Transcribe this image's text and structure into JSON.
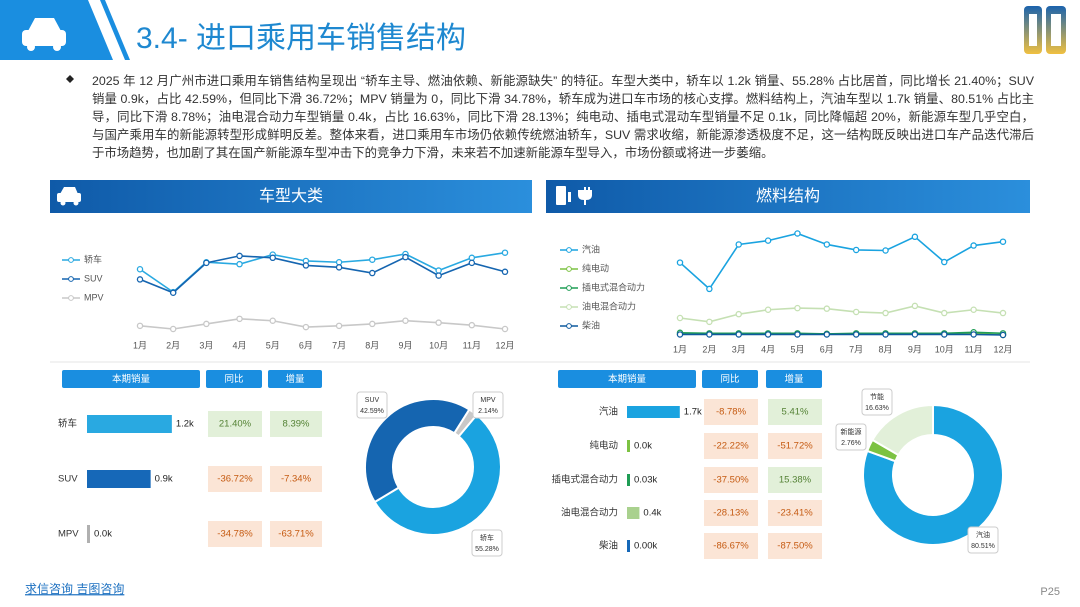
{
  "header": {
    "title": "3.4- 进口乘用车销售结构"
  },
  "summary": "2025 年 12 月广州市进口乘用车销售结构呈现出 “轿车主导、燃油依赖、新能源缺失” 的特征。车型大类中，轿车以 1.2k 销量、55.28% 占比居首，同比增长 21.40%；SUV 销量 0.9k，占比 42.59%，但同比下滑 36.72%；MPV 销量为 0，同比下滑 34.78%，轿车成为进口车市场的核心支撑。燃料结构上，汽油车型以 1.7k 销量、80.51% 占比主导，同比下滑 8.78%；油电混合动力车型销量 0.4k，占比 16.63%，同比下滑 28.13%；纯电动、插电式混动车型销量不足 0.1k，同比降幅超 20%，新能源车型几乎空白，与国产乘用车的新能源转型形成鲜明反差。整体来看，进口乘用车市场仍依赖传统燃油轿车，SUV 需求收缩，新能源渗透极度不足，这一结构既反映出进口车产品迭代滞后于市场趋势，也加剧了其在国产新能源车型冲击下的竞争力下滑，未来若不加速新能源车型导入，市场份额或将进一步萎缩。",
  "footer": {
    "source": "求信咨询 吉图咨询",
    "page": "P25"
  },
  "chart_data": [
    {
      "type": "line",
      "title": "车型大类",
      "categories": [
        "1月",
        "2月",
        "3月",
        "4月",
        "5月",
        "6月",
        "7月",
        "8月",
        "9月",
        "10月",
        "11月",
        "12月"
      ],
      "ylim": [
        0,
        1.4
      ],
      "series": [
        {
          "name": "轿车",
          "color": "#29a9e1",
          "values": [
            0.94,
            0.58,
            1.05,
            1.02,
            1.17,
            1.07,
            1.05,
            1.09,
            1.18,
            0.92,
            1.12,
            1.2
          ]
        },
        {
          "name": "SUV",
          "color": "#1565b0",
          "values": [
            0.78,
            0.57,
            1.04,
            1.15,
            1.12,
            1.0,
            0.97,
            0.88,
            1.13,
            0.84,
            1.04,
            0.9
          ]
        },
        {
          "name": "MPV",
          "color": "#c8c8c8",
          "values": [
            0.05,
            0,
            0.08,
            0.16,
            0.13,
            0.03,
            0.05,
            0.08,
            0.13,
            0.1,
            0.06,
            0
          ]
        }
      ]
    },
    {
      "type": "line",
      "title": "燃料结构",
      "categories": [
        "1月",
        "2月",
        "3月",
        "4月",
        "5月",
        "6月",
        "7月",
        "8月",
        "9月",
        "10月",
        "11月",
        "12月"
      ],
      "ylim": [
        0,
        1.95
      ],
      "series": [
        {
          "name": "汽油",
          "color": "#1aa3e0",
          "values": [
            1.32,
            0.84,
            1.65,
            1.72,
            1.85,
            1.65,
            1.55,
            1.54,
            1.79,
            1.33,
            1.63,
            1.7
          ]
        },
        {
          "name": "纯电动",
          "color": "#7cc242",
          "values": [
            0.02,
            0.02,
            0.02,
            0.02,
            0.02,
            0.02,
            0.02,
            0.02,
            0.02,
            0.02,
            0.03,
            0
          ]
        },
        {
          "name": "插电式混合动力",
          "color": "#1f9d55",
          "values": [
            0.04,
            0.03,
            0.03,
            0.03,
            0.03,
            0.02,
            0.03,
            0.03,
            0.03,
            0.03,
            0.05,
            0.03
          ]
        },
        {
          "name": "油电混合动力",
          "color": "#c5e0b3",
          "values": [
            0.31,
            0.24,
            0.38,
            0.46,
            0.49,
            0.48,
            0.42,
            0.4,
            0.53,
            0.4,
            0.46,
            0.4
          ]
        },
        {
          "name": "柴油",
          "color": "#0f5a9e",
          "values": [
            0.01,
            0.01,
            0.01,
            0.01,
            0.01,
            0.01,
            0.01,
            0.01,
            0.01,
            0.01,
            0.01,
            0
          ]
        }
      ]
    },
    {
      "type": "bartable",
      "columns": [
        "本期销量",
        "同比",
        "增量"
      ],
      "categories": [
        "轿车",
        "SUV",
        "MPV"
      ],
      "values": [
        1.2,
        0.9,
        0
      ],
      "value_labels": [
        "1.2k",
        "0.9k",
        "0.0k"
      ],
      "colors": [
        "#29a9e1",
        "#1668b8",
        "#b0b0b0"
      ],
      "xlim": [
        0,
        1.4
      ],
      "yoy": [
        "21.40%",
        "-36.72%",
        "-34.78%"
      ],
      "increment": [
        "8.39%",
        "-7.34%",
        "-63.71%"
      ]
    },
    {
      "type": "donut",
      "categories": [
        "轿车",
        "SUV",
        "MPV"
      ],
      "values": [
        55.28,
        42.59,
        2.14
      ],
      "value_labels": [
        "55.28%",
        "42.59%",
        "2.14%"
      ],
      "colors": [
        "#1aa3e0",
        "#1565b0",
        "#c8c8c8"
      ]
    },
    {
      "type": "bartable",
      "columns": [
        "本期销量",
        "同比",
        "增量"
      ],
      "categories": [
        "汽油",
        "纯电动",
        "插电式混合动力",
        "油电混合动力",
        "柴油"
      ],
      "values": [
        1.7,
        0,
        0.03,
        0.4,
        0
      ],
      "value_labels": [
        "1.7k",
        "0.0k",
        "0.03k",
        "0.4k",
        "0.00k"
      ],
      "colors": [
        "#1aa3e0",
        "#7cc242",
        "#1f9d55",
        "#a9d18e",
        "#1668b8"
      ],
      "xlim": [
        0,
        1.9
      ],
      "yoy": [
        "-8.78%",
        "-22.22%",
        "-37.50%",
        "-28.13%",
        "-86.67%"
      ],
      "increment": [
        "5.41%",
        "-51.72%",
        "15.38%",
        "-23.41%",
        "-87.50%"
      ]
    },
    {
      "type": "donut",
      "categories": [
        "汽油",
        "新能源",
        "节能"
      ],
      "values": [
        80.51,
        2.76,
        16.63
      ],
      "value_labels": [
        "80.51%",
        "2.76%",
        "16.63%"
      ],
      "colors": [
        "#1aa3e0",
        "#7cc242",
        "#e2f0d9"
      ]
    }
  ]
}
